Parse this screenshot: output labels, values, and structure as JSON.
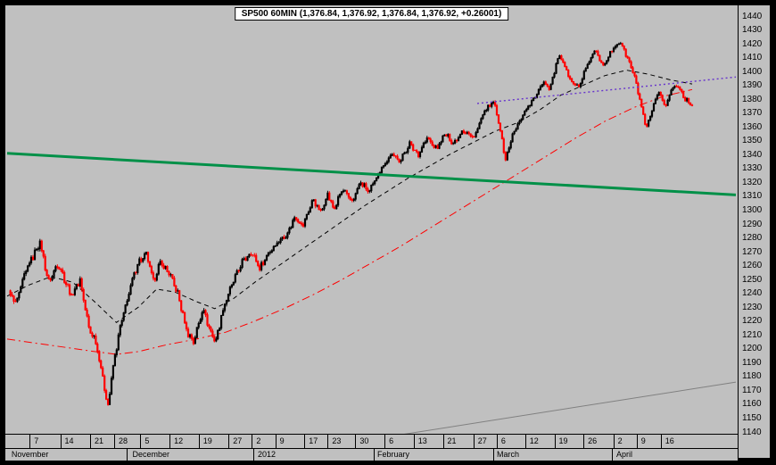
{
  "title": "SP500 60MIN (1,376.84, 1,376.92, 1,376.84, 1,376.92, +0.26001)",
  "window": {
    "bg": "#c0c0c0",
    "frame": "#000000"
  },
  "chart_data": {
    "type": "candlestick",
    "symbol": "SP500",
    "timeframe": "60MIN",
    "quote": {
      "open": "1,376.84",
      "high": "1,376.92",
      "low": "1,376.84",
      "close": "1,376.92",
      "change": "+0.26001"
    },
    "candle_colors": {
      "up": "#000000",
      "down": "#ff0000"
    },
    "y_axis": {
      "min": 1140,
      "max": 1440,
      "step": 10,
      "ticks": [
        1440,
        1430,
        1420,
        1410,
        1400,
        1390,
        1380,
        1370,
        1360,
        1350,
        1340,
        1330,
        1320,
        1310,
        1300,
        1290,
        1280,
        1270,
        1260,
        1250,
        1240,
        1230,
        1220,
        1210,
        1200,
        1190,
        1180,
        1170,
        1160,
        1150,
        1140
      ]
    },
    "x_axis": {
      "day_ticks": [
        {
          "label": "7",
          "pct": 3.7
        },
        {
          "label": "14",
          "pct": 7.9
        },
        {
          "label": "21",
          "pct": 12.0
        },
        {
          "label": "28",
          "pct": 15.3
        },
        {
          "label": "5",
          "pct": 18.9
        },
        {
          "label": "12",
          "pct": 22.9
        },
        {
          "label": "19",
          "pct": 26.9
        },
        {
          "label": "27",
          "pct": 31.0
        },
        {
          "label": "2",
          "pct": 34.2
        },
        {
          "label": "9",
          "pct": 37.4
        },
        {
          "label": "17",
          "pct": 41.4
        },
        {
          "label": "23",
          "pct": 44.6
        },
        {
          "label": "30",
          "pct": 48.4
        },
        {
          "label": "6",
          "pct": 52.4
        },
        {
          "label": "13",
          "pct": 56.4
        },
        {
          "label": "21",
          "pct": 60.4
        },
        {
          "label": "27",
          "pct": 64.6
        },
        {
          "label": "6",
          "pct": 67.8
        },
        {
          "label": "12",
          "pct": 71.7
        },
        {
          "label": "19",
          "pct": 75.7
        },
        {
          "label": "26",
          "pct": 79.7
        },
        {
          "label": "2",
          "pct": 83.8
        },
        {
          "label": "9",
          "pct": 87.0
        },
        {
          "label": "16",
          "pct": 90.3
        }
      ],
      "month_labels": [
        {
          "label": "November",
          "pct": 0.6
        },
        {
          "label": "December",
          "pct": 17.2
        },
        {
          "label": "2012",
          "pct": 34.4
        },
        {
          "label": "February",
          "pct": 50.8
        },
        {
          "label": "March",
          "pct": 67.2
        },
        {
          "label": "April",
          "pct": 83.6
        }
      ],
      "month_boundaries_pct": [
        16.4,
        33.8,
        50.3,
        66.7,
        83.0
      ]
    },
    "price_path": [
      [
        0.2,
        1242
      ],
      [
        1.2,
        1232
      ],
      [
        2.7,
        1258
      ],
      [
        4.5,
        1277
      ],
      [
        5.7,
        1248
      ],
      [
        7.0,
        1262
      ],
      [
        8.8,
        1238
      ],
      [
        10.0,
        1250
      ],
      [
        11.2,
        1215
      ],
      [
        12.2,
        1205
      ],
      [
        13.1,
        1180
      ],
      [
        13.8,
        1158
      ],
      [
        14.7,
        1192
      ],
      [
        15.5,
        1215
      ],
      [
        16.7,
        1240
      ],
      [
        17.9,
        1262
      ],
      [
        19.2,
        1268
      ],
      [
        20.0,
        1248
      ],
      [
        21.0,
        1262
      ],
      [
        22.2,
        1255
      ],
      [
        23.4,
        1240
      ],
      [
        24.7,
        1212
      ],
      [
        25.6,
        1205
      ],
      [
        26.9,
        1230
      ],
      [
        27.7,
        1215
      ],
      [
        28.6,
        1205
      ],
      [
        29.8,
        1232
      ],
      [
        31.0,
        1248
      ],
      [
        32.2,
        1262
      ],
      [
        33.5,
        1270
      ],
      [
        34.7,
        1258
      ],
      [
        35.7,
        1268
      ],
      [
        37.1,
        1277
      ],
      [
        38.3,
        1282
      ],
      [
        39.6,
        1296
      ],
      [
        40.5,
        1288
      ],
      [
        42.0,
        1308
      ],
      [
        43.0,
        1298
      ],
      [
        44.0,
        1312
      ],
      [
        44.8,
        1300
      ],
      [
        46.0,
        1315
      ],
      [
        47.3,
        1306
      ],
      [
        48.5,
        1320
      ],
      [
        49.7,
        1313
      ],
      [
        51.3,
        1330
      ],
      [
        52.7,
        1340
      ],
      [
        54.0,
        1336
      ],
      [
        55.2,
        1348
      ],
      [
        56.4,
        1340
      ],
      [
        57.6,
        1352
      ],
      [
        58.9,
        1344
      ],
      [
        60.1,
        1355
      ],
      [
        61.3,
        1348
      ],
      [
        62.5,
        1358
      ],
      [
        64.0,
        1352
      ],
      [
        65.6,
        1372
      ],
      [
        66.8,
        1378
      ],
      [
        67.6,
        1360
      ],
      [
        68.4,
        1336
      ],
      [
        69.2,
        1352
      ],
      [
        70.1,
        1362
      ],
      [
        71.1,
        1372
      ],
      [
        72.3,
        1380
      ],
      [
        73.5,
        1393
      ],
      [
        74.5,
        1388
      ],
      [
        75.7,
        1412
      ],
      [
        76.6,
        1402
      ],
      [
        77.4,
        1394
      ],
      [
        78.4,
        1388
      ],
      [
        79.4,
        1402
      ],
      [
        80.6,
        1415
      ],
      [
        81.8,
        1405
      ],
      [
        83.0,
        1415
      ],
      [
        84.1,
        1422
      ],
      [
        85.1,
        1410
      ],
      [
        86.0,
        1398
      ],
      [
        86.9,
        1378
      ],
      [
        87.7,
        1358
      ],
      [
        88.5,
        1372
      ],
      [
        89.4,
        1385
      ],
      [
        90.4,
        1375
      ],
      [
        91.2,
        1388
      ],
      [
        92.1,
        1390
      ],
      [
        93.0,
        1380
      ],
      [
        94.0,
        1376
      ]
    ],
    "ma_fast": {
      "name": "moving-average-fast",
      "style": "dashed",
      "color": "#000000",
      "points": [
        [
          0,
          1238
        ],
        [
          3,
          1246
        ],
        [
          6,
          1252
        ],
        [
          9,
          1248
        ],
        [
          12,
          1234
        ],
        [
          15,
          1219
        ],
        [
          18,
          1230
        ],
        [
          20.5,
          1243
        ],
        [
          23,
          1241
        ],
        [
          26,
          1234
        ],
        [
          28.5,
          1229
        ],
        [
          31,
          1236
        ],
        [
          34,
          1248
        ],
        [
          37,
          1259
        ],
        [
          40,
          1270
        ],
        [
          43,
          1281
        ],
        [
          46,
          1292
        ],
        [
          49,
          1303
        ],
        [
          52,
          1313
        ],
        [
          55,
          1323
        ],
        [
          58,
          1332
        ],
        [
          61,
          1341
        ],
        [
          64,
          1349
        ],
        [
          67,
          1357
        ],
        [
          70,
          1363
        ],
        [
          73,
          1372
        ],
        [
          76,
          1383
        ],
        [
          79,
          1390
        ],
        [
          82,
          1397
        ],
        [
          85,
          1401
        ],
        [
          88,
          1398
        ],
        [
          91,
          1394
        ],
        [
          94,
          1391
        ]
      ]
    },
    "ma_slow": {
      "name": "moving-average-slow",
      "style": "dashdot",
      "color": "#ff0000",
      "points": [
        [
          0,
          1207
        ],
        [
          4,
          1204
        ],
        [
          8,
          1201
        ],
        [
          12,
          1198
        ],
        [
          15,
          1196
        ],
        [
          18,
          1198
        ],
        [
          22,
          1203
        ],
        [
          26,
          1207
        ],
        [
          30,
          1212
        ],
        [
          34,
          1220
        ],
        [
          38,
          1229
        ],
        [
          42,
          1239
        ],
        [
          46,
          1250
        ],
        [
          50,
          1262
        ],
        [
          54,
          1274
        ],
        [
          58,
          1287
        ],
        [
          62,
          1300
        ],
        [
          66,
          1313
        ],
        [
          70,
          1326
        ],
        [
          74,
          1339
        ],
        [
          78,
          1352
        ],
        [
          82,
          1364
        ],
        [
          86,
          1374
        ],
        [
          90,
          1382
        ],
        [
          94,
          1387
        ]
      ]
    },
    "trendlines": [
      {
        "name": "green-trendline",
        "color": "#009048",
        "width": 3,
        "style": "solid",
        "layer": "over",
        "from": [
          0,
          1341
        ],
        "to": [
          100,
          1311
        ]
      },
      {
        "name": "purple-dotted-trendline",
        "color": "#6633cc",
        "width": 1.4,
        "style": "dotted",
        "layer": "over",
        "from": [
          64.5,
          1377
        ],
        "to": [
          100,
          1396
        ]
      },
      {
        "name": "gray-lower-trendline",
        "color": "#808080",
        "width": 1,
        "style": "solid",
        "layer": "under",
        "from": [
          54,
          1138
        ],
        "to": [
          100,
          1176
        ]
      }
    ]
  }
}
